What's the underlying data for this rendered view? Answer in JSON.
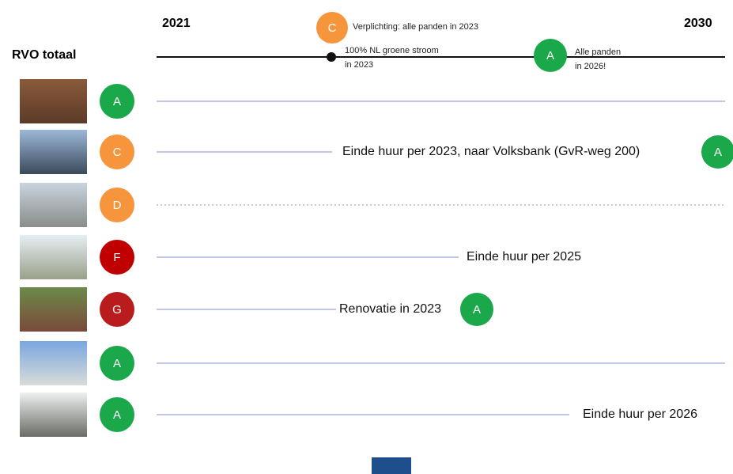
{
  "header": {
    "start_year": "2021",
    "end_year": "2030",
    "title": "RVO totaal"
  },
  "milestones": [
    {
      "badge": "C",
      "color": "#f7953c",
      "text": [
        "Verplichting: alle panden in 2023"
      ]
    },
    {
      "text": [
        "100% NL groene stroom",
        "in 2023"
      ]
    },
    {
      "badge": "A",
      "color": "#1aa84a",
      "text": [
        "Alle panden",
        "in 2026!"
      ]
    }
  ],
  "rows": [
    {
      "label": "A",
      "color": "#1aa84a"
    },
    {
      "label": "C",
      "color": "#f7953c",
      "note": "Einde huur per 2023, naar Volksbank (GvR-weg 200)",
      "target": "A",
      "target_color": "#1aa84a"
    },
    {
      "label": "D",
      "color": "#f7953c",
      "dotted": true
    },
    {
      "label": "F",
      "color": "#c00000",
      "note": "Einde huur per 2025"
    },
    {
      "label": "G",
      "color": "#b81c1c",
      "note": "Renovatie in 2023",
      "target": "A",
      "target_color": "#1aa84a"
    },
    {
      "label": "A",
      "color": "#1aa84a"
    },
    {
      "label": "A",
      "color": "#1aa84a",
      "note": "Einde huur per 2026"
    }
  ]
}
